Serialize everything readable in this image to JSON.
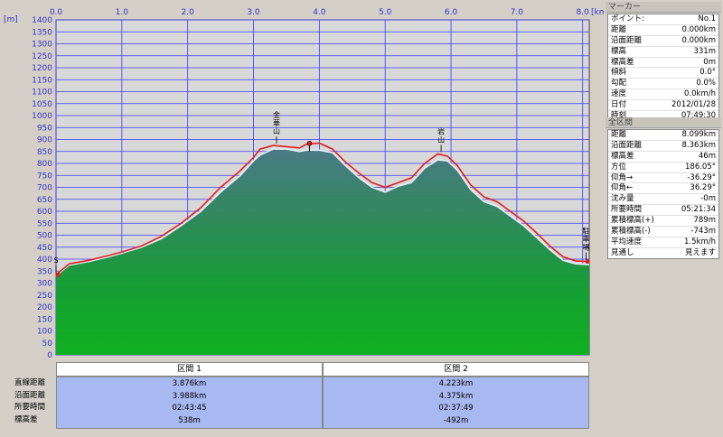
{
  "chart_data": {
    "type": "area",
    "x_unit": "km",
    "y_unit": "m",
    "xlim": [
      0,
      8.1
    ],
    "ylim": [
      0,
      1400
    ],
    "x_ticks": [
      "0.0",
      "1.0",
      "2.0",
      "3.0",
      "4.0",
      "5.0",
      "6.0",
      "7.0",
      "8.0"
    ],
    "y_ticks": [
      "0",
      "50",
      "100",
      "150",
      "200",
      "250",
      "300",
      "350",
      "400",
      "450",
      "500",
      "550",
      "600",
      "650",
      "700",
      "750",
      "800",
      "850",
      "900",
      "950",
      "1000",
      "1050",
      "1100",
      "1150",
      "1200",
      "1250",
      "1300",
      "1350",
      "1400"
    ],
    "grid": true,
    "series": [
      {
        "name": "",
        "style": "green filled area",
        "points": [
          [
            0,
            331
          ],
          [
            0.2,
            375
          ],
          [
            0.5,
            390
          ],
          [
            0.8,
            410
          ],
          [
            1.0,
            425
          ],
          [
            1.3,
            450
          ],
          [
            1.6,
            485
          ],
          [
            1.9,
            540
          ],
          [
            2.2,
            600
          ],
          [
            2.5,
            680
          ],
          [
            2.8,
            750
          ],
          [
            3.0,
            810
          ],
          [
            3.1,
            835
          ],
          [
            3.3,
            860
          ],
          [
            3.5,
            860
          ],
          [
            3.7,
            850
          ],
          [
            3.8,
            855
          ],
          [
            4.0,
            855
          ],
          [
            4.2,
            845
          ],
          [
            4.4,
            790
          ],
          [
            4.6,
            740
          ],
          [
            4.8,
            700
          ],
          [
            5.0,
            680
          ],
          [
            5.2,
            705
          ],
          [
            5.4,
            720
          ],
          [
            5.6,
            780
          ],
          [
            5.8,
            815
          ],
          [
            5.95,
            810
          ],
          [
            6.1,
            770
          ],
          [
            6.3,
            690
          ],
          [
            6.5,
            640
          ],
          [
            6.7,
            620
          ],
          [
            6.9,
            580
          ],
          [
            7.1,
            540
          ],
          [
            7.3,
            490
          ],
          [
            7.5,
            440
          ],
          [
            7.7,
            395
          ],
          [
            7.9,
            380
          ],
          [
            8.099,
            377
          ]
        ]
      },
      {
        "name": "",
        "style": "red profile line",
        "points": [
          [
            0,
            335
          ],
          [
            0.2,
            380
          ],
          [
            0.5,
            395
          ],
          [
            0.8,
            415
          ],
          [
            1.0,
            430
          ],
          [
            1.3,
            455
          ],
          [
            1.6,
            495
          ],
          [
            1.9,
            550
          ],
          [
            2.2,
            615
          ],
          [
            2.5,
            700
          ],
          [
            2.8,
            770
          ],
          [
            3.0,
            825
          ],
          [
            3.1,
            860
          ],
          [
            3.3,
            875
          ],
          [
            3.5,
            870
          ],
          [
            3.7,
            865
          ],
          [
            3.8,
            880
          ],
          [
            4.0,
            885
          ],
          [
            4.2,
            860
          ],
          [
            4.4,
            805
          ],
          [
            4.6,
            760
          ],
          [
            4.8,
            720
          ],
          [
            5.0,
            700
          ],
          [
            5.2,
            720
          ],
          [
            5.4,
            740
          ],
          [
            5.6,
            800
          ],
          [
            5.8,
            840
          ],
          [
            5.95,
            830
          ],
          [
            6.1,
            790
          ],
          [
            6.3,
            710
          ],
          [
            6.5,
            660
          ],
          [
            6.7,
            640
          ],
          [
            6.9,
            600
          ],
          [
            7.1,
            560
          ],
          [
            7.3,
            510
          ],
          [
            7.5,
            455
          ],
          [
            7.7,
            410
          ],
          [
            7.9,
            392
          ],
          [
            8.099,
            390
          ]
        ]
      }
    ],
    "annotations": [
      {
        "text": "金華山",
        "x": 3.35,
        "y": 875
      },
      {
        "text": "岩山",
        "x": 5.85,
        "y": 840
      },
      {
        "text": "駐車場",
        "x": 8.05,
        "y": 390
      },
      {
        "text": "S",
        "x": 0.0,
        "y": 335
      }
    ],
    "marker_flags": [
      {
        "x": 3.85,
        "y": 880
      }
    ]
  },
  "axis": {
    "y_unit_label": "[m]",
    "x_unit_label": "[km]"
  },
  "marker_panel": {
    "title": "マーカー",
    "rows": [
      {
        "label": "ポイント:",
        "value": "No.1"
      },
      {
        "label": "距離",
        "value": "0.000km"
      },
      {
        "label": "沿面距離",
        "value": "0.000km"
      },
      {
        "label": "標高",
        "value": "331m"
      },
      {
        "label": "標高差",
        "value": "0m"
      },
      {
        "label": "傾斜",
        "value": "0.0°"
      },
      {
        "label": "勾配",
        "value": "0.0%"
      },
      {
        "label": "速度",
        "value": "0.0km/h"
      },
      {
        "label": "日付",
        "value": "2012/01/28"
      },
      {
        "label": "時刻",
        "value": "07:49:30"
      }
    ]
  },
  "total_panel": {
    "title": "全区間",
    "rows": [
      {
        "label": "距離",
        "value": "8.099km"
      },
      {
        "label": "沿面距離",
        "value": "8.363km"
      },
      {
        "label": "標高差",
        "value": "46m"
      },
      {
        "label": "方位",
        "value": "186.05°"
      },
      {
        "label": "仰角→",
        "value": "-36.29°"
      },
      {
        "label": "仰角←",
        "value": "36.29°"
      },
      {
        "label": "沈み量",
        "value": "-0m"
      },
      {
        "label": "所要時間",
        "value": "05:21:34"
      },
      {
        "label": "累積標高(+)",
        "value": "789m"
      },
      {
        "label": "累積標高(-)",
        "value": "-743m"
      },
      {
        "label": "平均速度",
        "value": "1.5km/h"
      },
      {
        "label": "見通し",
        "value": "見えます"
      }
    ]
  },
  "segments": {
    "row_labels": [
      "直線距離",
      "沿面距離",
      "所要時間",
      "標高差"
    ],
    "columns": [
      {
        "title": "区間 1",
        "values": [
          "3.876km",
          "3.988km",
          "02:43:45",
          "538m"
        ]
      },
      {
        "title": "区間 2",
        "values": [
          "4.223km",
          "4.375km",
          "02:37:49",
          "-492m"
        ]
      }
    ]
  }
}
